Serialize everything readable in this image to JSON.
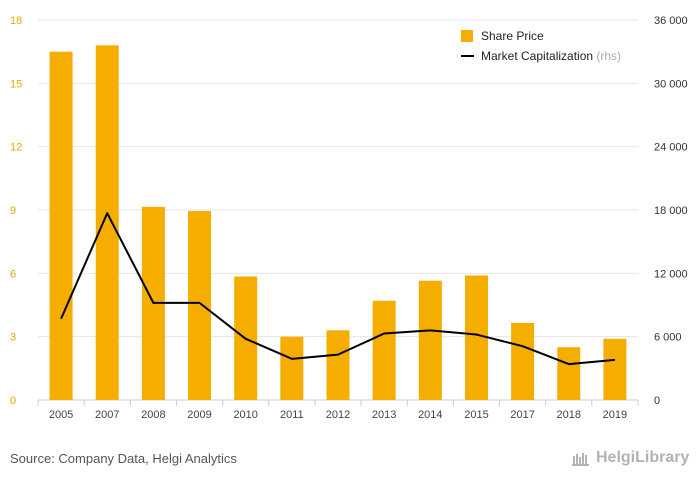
{
  "chart_data": {
    "type": "bar",
    "categories": [
      "2005",
      "2007",
      "2008",
      "2009",
      "2010",
      "2011",
      "2012",
      "2013",
      "2014",
      "2015",
      "2017",
      "2018",
      "2019"
    ],
    "series": [
      {
        "name": "Share Price",
        "type": "bar",
        "axis": "left",
        "color": "#f5ad00",
        "values": [
          16.5,
          16.8,
          9.15,
          8.95,
          5.85,
          3.0,
          3.3,
          4.7,
          5.65,
          5.9,
          3.65,
          2.5,
          2.9
        ]
      },
      {
        "name": "Market Capitalization",
        "name_note": "(rhs)",
        "type": "line",
        "axis": "right",
        "color": "#000000",
        "values": [
          7700,
          17700,
          9200,
          9200,
          5800,
          3900,
          4300,
          6300,
          6600,
          6200,
          5100,
          3400,
          3800
        ]
      }
    ],
    "y_left": {
      "ticks": [
        0,
        3,
        6,
        9,
        12,
        15,
        18
      ],
      "tick_labels": [
        "0",
        "3",
        "6",
        "9",
        "12",
        "15",
        "18"
      ],
      "ylim": [
        0,
        18
      ]
    },
    "y_right": {
      "ticks": [
        0,
        6000,
        12000,
        18000,
        24000,
        30000,
        36000
      ],
      "tick_labels": [
        "0",
        "6 000",
        "12 000",
        "18 000",
        "24 000",
        "30 000",
        "36 000"
      ],
      "ylim": [
        0,
        36000
      ]
    },
    "grid": true,
    "legend_position": "top-right"
  },
  "footer": {
    "source": "Source: Company Data, Helgi Analytics",
    "logo": "HelgiLibrary"
  },
  "colors": {
    "bar": "#f5ad00",
    "line": "#000000",
    "grid": "#e6e6e6",
    "left_axis_text": "#e8a600"
  }
}
